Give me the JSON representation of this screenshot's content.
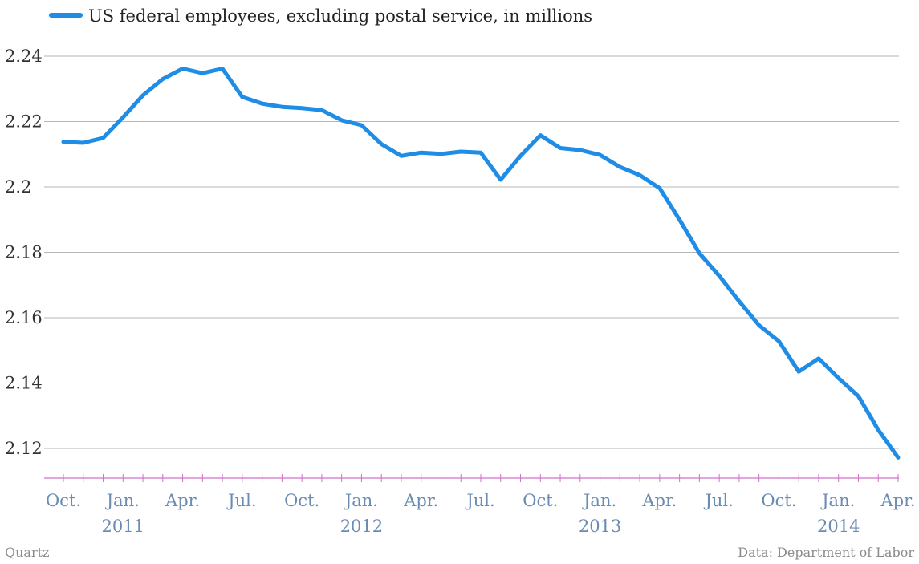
{
  "chart_data": {
    "type": "line",
    "title": "",
    "xlabel": "",
    "ylabel": "",
    "ylim": [
      2.11,
      2.24
    ],
    "grid": true,
    "legend_placement": "top-left",
    "series": [
      {
        "name": "US federal employees, excluding postal service, in millions",
        "color": "#1f8ce6",
        "x": [
          "2010-10",
          "2010-11",
          "2010-12",
          "2011-01",
          "2011-02",
          "2011-03",
          "2011-04",
          "2011-05",
          "2011-06",
          "2011-07",
          "2011-08",
          "2011-09",
          "2011-10",
          "2011-11",
          "2011-12",
          "2012-01",
          "2012-02",
          "2012-03",
          "2012-04",
          "2012-05",
          "2012-06",
          "2012-07",
          "2012-08",
          "2012-09",
          "2012-10",
          "2012-11",
          "2012-12",
          "2013-01",
          "2013-02",
          "2013-03",
          "2013-04",
          "2013-05",
          "2013-06",
          "2013-07",
          "2013-08",
          "2013-09",
          "2013-10",
          "2013-11",
          "2013-12",
          "2014-01",
          "2014-02",
          "2014-03",
          "2014-04"
        ],
        "values": [
          2.2138,
          2.2135,
          2.215,
          2.2213,
          2.228,
          2.233,
          2.2362,
          2.2348,
          2.2362,
          2.2275,
          2.2255,
          2.2245,
          2.2241,
          2.2235,
          2.2204,
          2.2189,
          2.2131,
          2.2095,
          2.2105,
          2.2101,
          2.2108,
          2.2105,
          2.2022,
          2.2095,
          2.2158,
          2.2119,
          2.2113,
          2.2098,
          2.2061,
          2.2036,
          2.1996,
          2.19,
          2.1797,
          2.1728,
          2.165,
          2.1577,
          2.1528,
          2.1435,
          2.1475,
          2.1415,
          2.136,
          2.1257,
          2.1172
        ]
      }
    ],
    "y_ticks": [
      "2.24",
      "2.22",
      "2.2",
      "2.18",
      "2.16",
      "2.14",
      "2.12"
    ],
    "x_month_ticks": [
      {
        "x": "2010-10",
        "label": "Oct."
      },
      {
        "x": "2011-01",
        "label": "Jan."
      },
      {
        "x": "2011-04",
        "label": "Apr."
      },
      {
        "x": "2011-07",
        "label": "Jul."
      },
      {
        "x": "2011-10",
        "label": "Oct."
      },
      {
        "x": "2012-01",
        "label": "Jan."
      },
      {
        "x": "2012-04",
        "label": "Apr."
      },
      {
        "x": "2012-07",
        "label": "Jul."
      },
      {
        "x": "2012-10",
        "label": "Oct."
      },
      {
        "x": "2013-01",
        "label": "Jan."
      },
      {
        "x": "2013-04",
        "label": "Apr."
      },
      {
        "x": "2013-07",
        "label": "Jul."
      },
      {
        "x": "2013-10",
        "label": "Oct."
      },
      {
        "x": "2014-01",
        "label": "Jan."
      },
      {
        "x": "2014-04",
        "label": "Apr."
      }
    ],
    "x_year_labels": [
      {
        "x": "2011-01",
        "label": "2011"
      },
      {
        "x": "2012-01",
        "label": "2012"
      },
      {
        "x": "2013-01",
        "label": "2013"
      },
      {
        "x": "2014-01",
        "label": "2014"
      }
    ],
    "colors": {
      "line": "#1f8ce6",
      "grid": "#b5b5b5",
      "axis": "#d36fc9",
      "x_tick_text": "#6a8cb3"
    }
  },
  "footer": {
    "source_left": "Quartz",
    "source_right": "Data: Department of Labor"
  }
}
